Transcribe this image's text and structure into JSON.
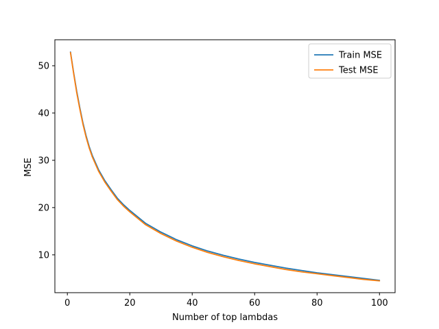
{
  "chart_data": {
    "type": "line",
    "xlabel": "Number of top lambdas",
    "ylabel": "MSE",
    "xlim": [
      -4,
      105
    ],
    "ylim": [
      2,
      55.5
    ],
    "xticks": [
      0,
      20,
      40,
      60,
      80,
      100
    ],
    "yticks": [
      10,
      20,
      30,
      40,
      50
    ],
    "grid": false,
    "legend_position": "top-right",
    "x": [
      1,
      2,
      3,
      4,
      5,
      6,
      7,
      8,
      10,
      12,
      14,
      16,
      18,
      20,
      25,
      30,
      35,
      40,
      45,
      50,
      55,
      60,
      65,
      70,
      75,
      80,
      85,
      90,
      95,
      100
    ],
    "series": [
      {
        "name": "Train MSE",
        "color": "#1f77b4",
        "values": [
          52.9,
          48.6,
          44.6,
          41.1,
          37.9,
          35.2,
          32.9,
          31.0,
          28.0,
          25.7,
          23.8,
          22.0,
          20.6,
          19.4,
          16.7,
          14.8,
          13.2,
          11.9,
          10.8,
          9.9,
          9.1,
          8.4,
          7.8,
          7.2,
          6.7,
          6.2,
          5.8,
          5.4,
          5.0,
          4.6
        ]
      },
      {
        "name": "Test MSE",
        "color": "#ff7f0e",
        "values": [
          52.8,
          48.4,
          44.3,
          40.8,
          37.6,
          34.9,
          32.6,
          30.7,
          27.7,
          25.4,
          23.5,
          21.7,
          20.3,
          19.1,
          16.4,
          14.5,
          12.9,
          11.6,
          10.5,
          9.6,
          8.8,
          8.1,
          7.5,
          6.9,
          6.4,
          6.0,
          5.6,
          5.2,
          4.8,
          4.5
        ]
      }
    ]
  }
}
